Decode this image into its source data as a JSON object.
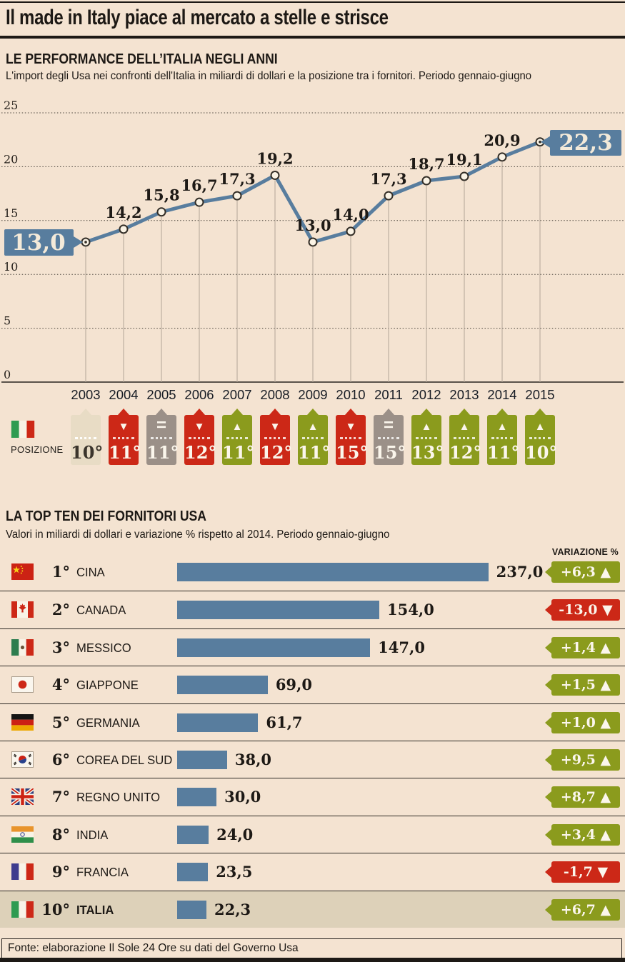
{
  "title": "Il made in Italy piace al mercato a stelle e strisce",
  "colors": {
    "background": "#f4e3d1",
    "accent_blue": "#587d9e",
    "up_green": "#8b9b1d",
    "down_red": "#cc2817",
    "equal_gray": "#9b9088",
    "start_cream": "#e8dcc5",
    "highlight_row": "#ddd1b9",
    "ink": "#1d1915"
  },
  "icons": {
    "up": "▲",
    "down": "▼",
    "equal": "=",
    "start": ""
  },
  "chart_data": [
    {
      "type": "line",
      "title": "LE PERFORMANCE DELL’ITALIA NEGLI ANNI",
      "subtitle": "L'import degli Usa nei confronti dell'Italia in miliardi di dollari e la posizione tra i fornitori. Periodo gennaio-giugno",
      "x": [
        "2003",
        "2004",
        "2005",
        "2006",
        "2007",
        "2008",
        "2009",
        "2010",
        "2011",
        "2012",
        "2013",
        "2014",
        "2015"
      ],
      "values": [
        13.0,
        14.2,
        15.8,
        16.7,
        17.3,
        19.2,
        13.0,
        14.0,
        17.3,
        18.7,
        19.1,
        20.9,
        22.3
      ],
      "point_labels": [
        "13,0",
        "14,2",
        "15,8",
        "16,7",
        "17,3",
        "19,2",
        "13,0",
        "14,0",
        "17,3",
        "18,7",
        "19,1",
        "20,9",
        "22,3"
      ],
      "ylim": [
        0,
        25
      ],
      "yticks": [
        0,
        5,
        10,
        15,
        20,
        25
      ],
      "grid": "horizontal-dotted",
      "positions_label": "POSIZIONE",
      "positions_flag": "italy",
      "positions": [
        {
          "year": "2003",
          "rank": "10°",
          "trend": "start"
        },
        {
          "year": "2004",
          "rank": "11°",
          "trend": "down"
        },
        {
          "year": "2005",
          "rank": "11°",
          "trend": "equal"
        },
        {
          "year": "2006",
          "rank": "12°",
          "trend": "down"
        },
        {
          "year": "2007",
          "rank": "11°",
          "trend": "up"
        },
        {
          "year": "2008",
          "rank": "12°",
          "trend": "down"
        },
        {
          "year": "2009",
          "rank": "11°",
          "trend": "up"
        },
        {
          "year": "2010",
          "rank": "15°",
          "trend": "down"
        },
        {
          "year": "2011",
          "rank": "15°",
          "trend": "equal"
        },
        {
          "year": "2012",
          "rank": "13°",
          "trend": "up"
        },
        {
          "year": "2013",
          "rank": "12°",
          "trend": "up"
        },
        {
          "year": "2014",
          "rank": "11°",
          "trend": "up"
        },
        {
          "year": "2015",
          "rank": "10°",
          "trend": "up"
        }
      ]
    },
    {
      "type": "bar",
      "title": "LA TOP TEN DEI FORNITORI USA",
      "subtitle": "Valori in miliardi di dollari e variazione % rispetto al 2014. Periodo gennaio-giugno",
      "variation_header": "VARIAZIONE %",
      "xlim": [
        0,
        250
      ],
      "rows": [
        {
          "rank": "1°",
          "country": "CINA",
          "flag": "china",
          "value": 237.0,
          "value_label": "237,0",
          "variation": "+6,3",
          "trend": "up",
          "highlight": false
        },
        {
          "rank": "2°",
          "country": "CANADA",
          "flag": "canada",
          "value": 154.0,
          "value_label": "154,0",
          "variation": "-13,0",
          "trend": "down",
          "highlight": false
        },
        {
          "rank": "3°",
          "country": "MESSICO",
          "flag": "mexico",
          "value": 147.0,
          "value_label": "147,0",
          "variation": "+1,4",
          "trend": "up",
          "highlight": false
        },
        {
          "rank": "4°",
          "country": "GIAPPONE",
          "flag": "japan",
          "value": 69.0,
          "value_label": "69,0",
          "variation": "+1,5",
          "trend": "up",
          "highlight": false
        },
        {
          "rank": "5°",
          "country": "GERMANIA",
          "flag": "germany",
          "value": 61.7,
          "value_label": "61,7",
          "variation": "+1,0",
          "trend": "up",
          "highlight": false
        },
        {
          "rank": "6°",
          "country": "COREA DEL SUD",
          "flag": "south-korea",
          "value": 38.0,
          "value_label": "38,0",
          "variation": "+9,5",
          "trend": "up",
          "highlight": false
        },
        {
          "rank": "7°",
          "country": "REGNO UNITO",
          "flag": "uk",
          "value": 30.0,
          "value_label": "30,0",
          "variation": "+8,7",
          "trend": "up",
          "highlight": false
        },
        {
          "rank": "8°",
          "country": "INDIA",
          "flag": "india",
          "value": 24.0,
          "value_label": "24,0",
          "variation": "+3,4",
          "trend": "up",
          "highlight": false
        },
        {
          "rank": "9°",
          "country": "FRANCIA",
          "flag": "france",
          "value": 23.5,
          "value_label": "23,5",
          "variation": "-1,7",
          "trend": "down",
          "highlight": false
        },
        {
          "rank": "10°",
          "country": "ITALIA",
          "flag": "italy",
          "value": 22.3,
          "value_label": "22,3",
          "variation": "+6,7",
          "trend": "up",
          "highlight": true
        }
      ]
    }
  ],
  "footer": {
    "source": "Fonte: elaborazione Il Sole 24 Ore su dati del Governo Usa"
  }
}
